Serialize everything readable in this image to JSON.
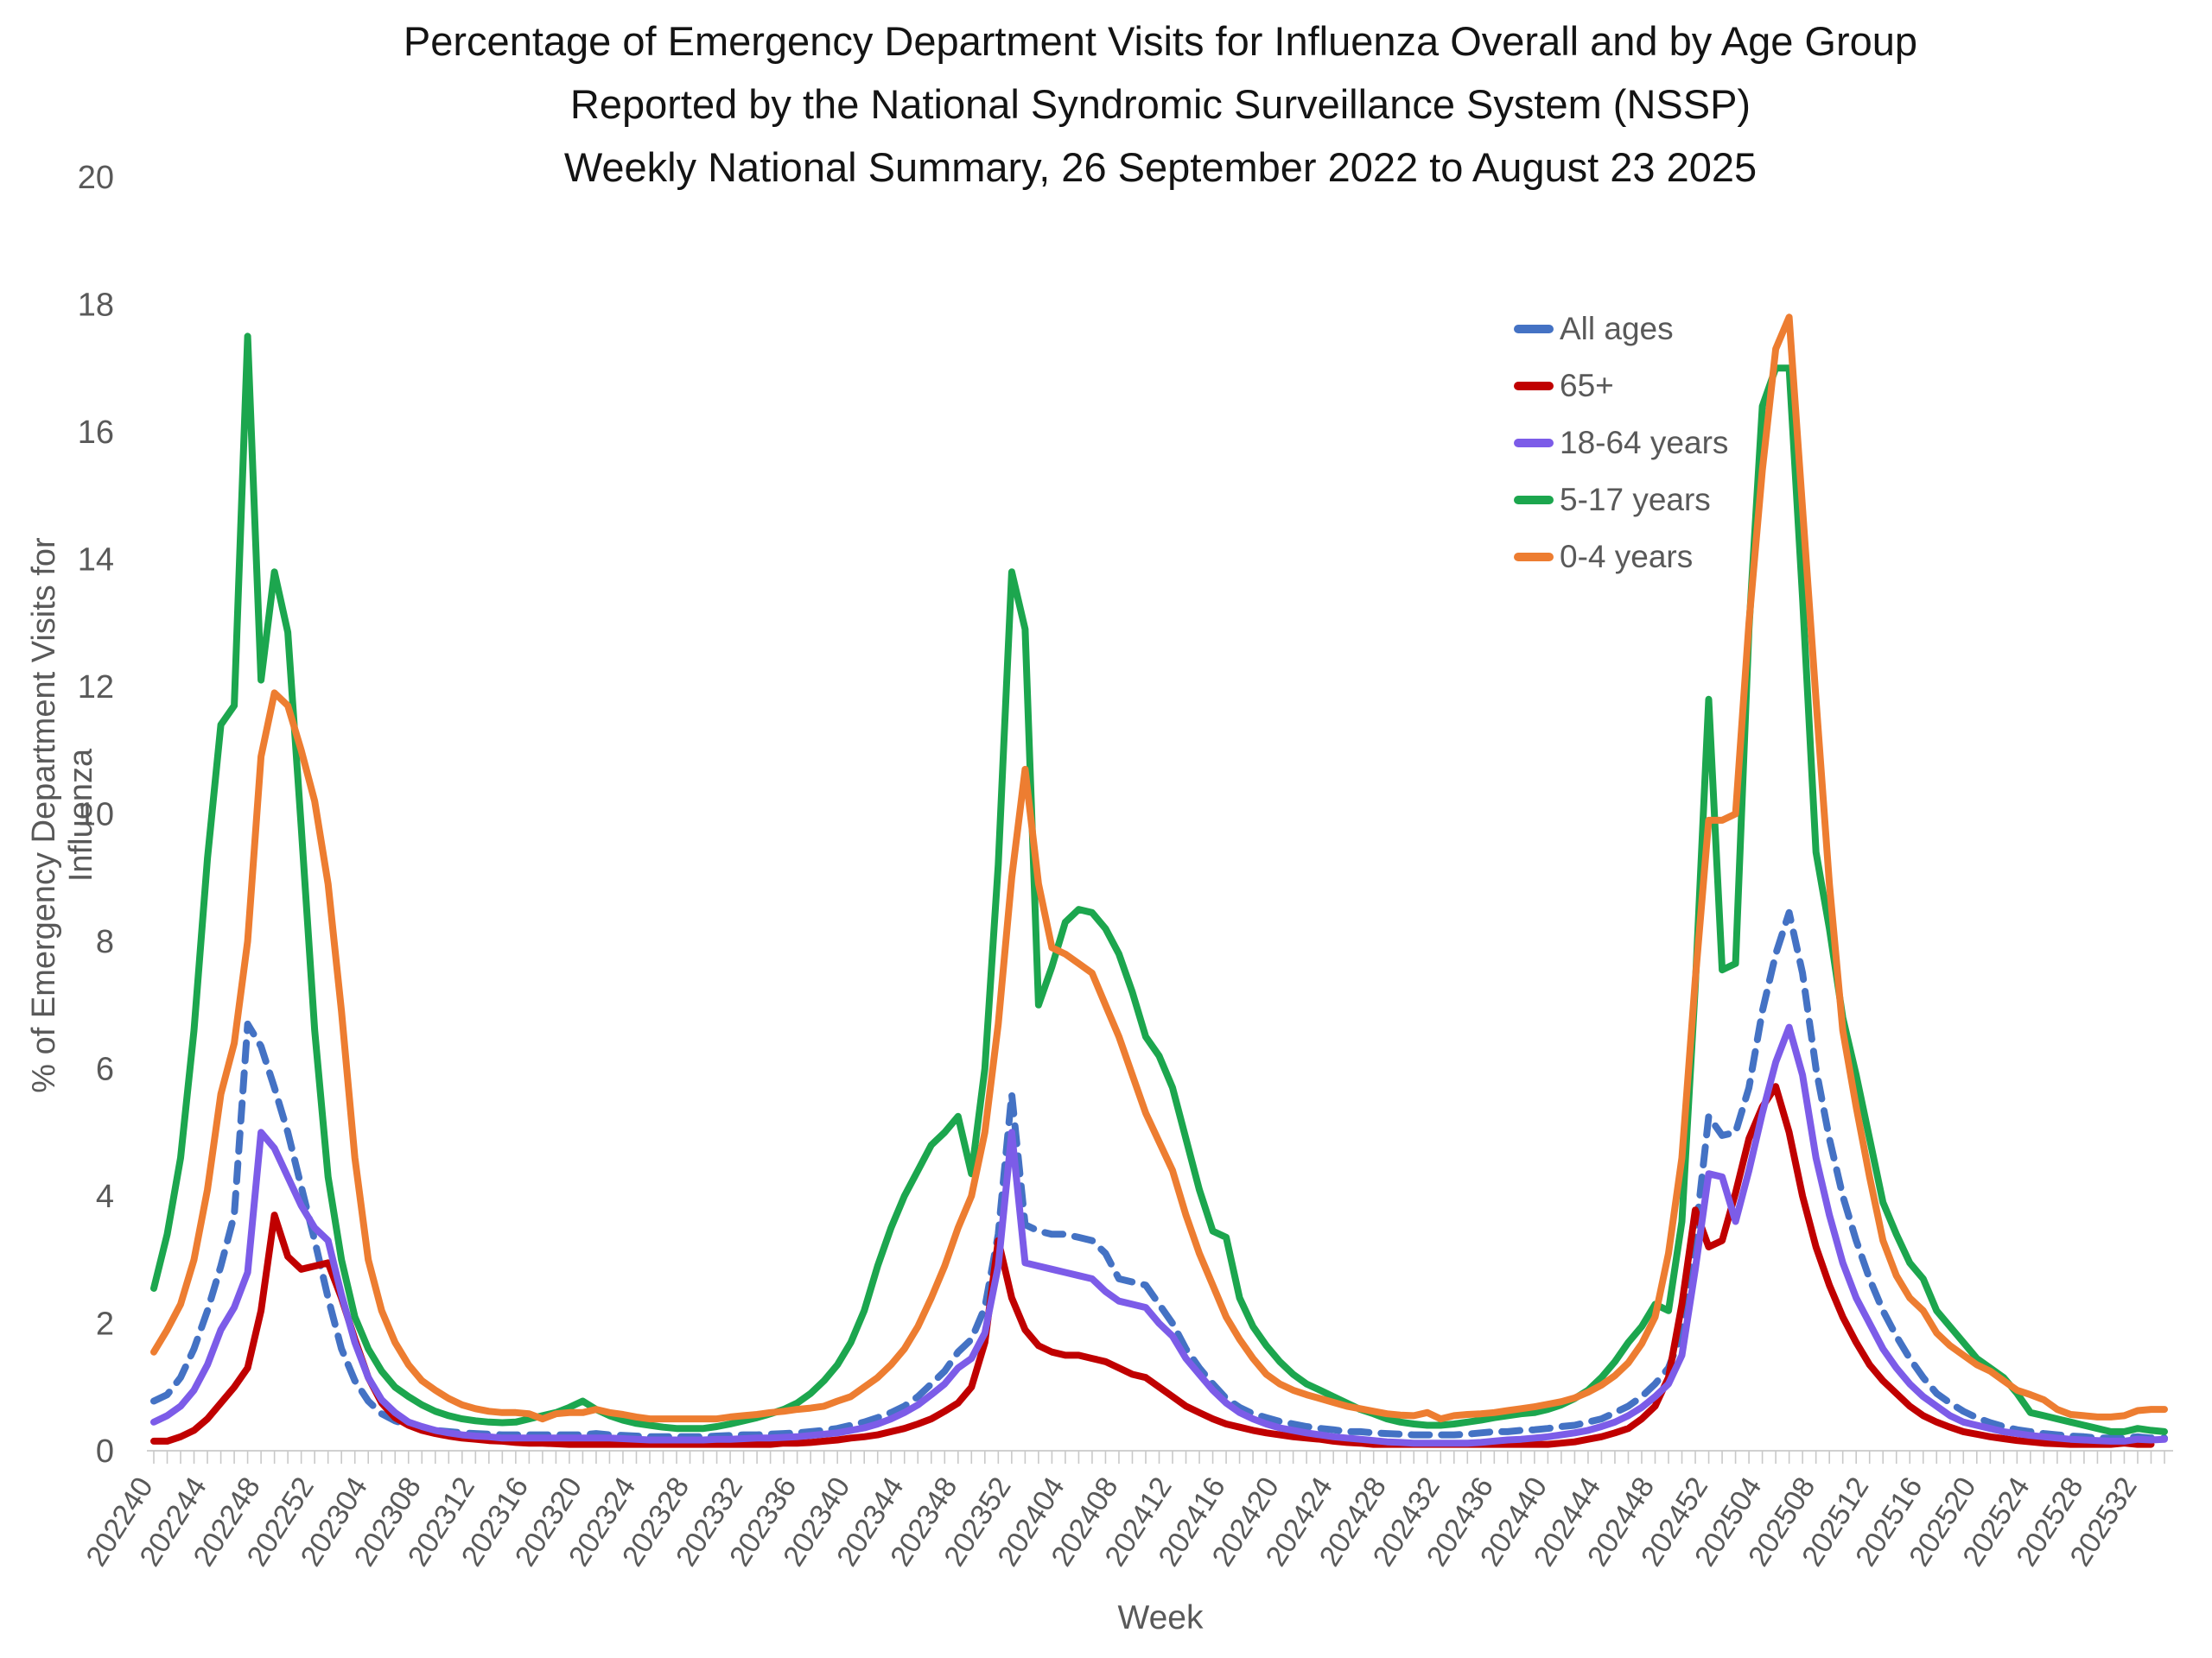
{
  "title": {
    "line1": "Percentage of Emergency Department Visits for Influenza Overall and by Age Group",
    "line2": "Reported by the National Syndromic Surveillance System (NSSP)",
    "line3": "Weekly National Summary, 26 September 2022 to  August 23 2025"
  },
  "y_axis": {
    "title": "% of Emergency Department Visits for Influenza",
    "min": 0,
    "max": 20,
    "tick_step": 2,
    "tick_labels": [
      "0",
      "2",
      "4",
      "6",
      "8",
      "10",
      "12",
      "14",
      "16",
      "18",
      "20"
    ]
  },
  "x_axis": {
    "title": "Week",
    "weeks_per_tick_label": 4,
    "tick_labels": [
      "202240",
      "202244",
      "202248",
      "202252",
      "202304",
      "202308",
      "202312",
      "202316",
      "202320",
      "202324",
      "202328",
      "202332",
      "202336",
      "202340",
      "202344",
      "202348",
      "202352",
      "202404",
      "202408",
      "202412",
      "202416",
      "202420",
      "202424",
      "202428",
      "202432",
      "202436",
      "202440",
      "202444",
      "202448",
      "202452",
      "202504",
      "202508",
      "202512",
      "202516",
      "202520",
      "202524",
      "202528",
      "202532"
    ]
  },
  "colors": {
    "all_ages": "#4472C4",
    "age_65_plus": "#C00000",
    "age_18_64": "#7C5CE8",
    "age_5_17": "#1CA64E",
    "age_0_4": "#ED7D31",
    "axis_text": "#595959",
    "axis_line": "#d0d0d0"
  },
  "chart_data": {
    "type": "line",
    "title": "Percentage of Emergency Department Visits for Influenza Overall and by Age Group, NSSP Weekly National Summary, 26 September 2022 to August 23 2025",
    "xlabel": "Week",
    "ylabel": "% of Emergency Department Visits for Influenza",
    "ylim": [
      0,
      20
    ],
    "grid": false,
    "legend_position": "upper-right",
    "n_points": 151,
    "x_label_every": 4,
    "x_tick_labels": [
      "202240",
      "202244",
      "202248",
      "202252",
      "202304",
      "202308",
      "202312",
      "202316",
      "202320",
      "202324",
      "202328",
      "202332",
      "202336",
      "202340",
      "202344",
      "202348",
      "202352",
      "202404",
      "202408",
      "202412",
      "202416",
      "202420",
      "202424",
      "202428",
      "202432",
      "202436",
      "202440",
      "202444",
      "202448",
      "202452",
      "202504",
      "202508",
      "202512",
      "202516",
      "202520",
      "202524",
      "202528",
      "202532"
    ],
    "series": [
      {
        "name": "All ages",
        "color": "#4472C4",
        "dashed": true,
        "values": [
          0.78,
          0.88,
          1.15,
          1.6,
          2.2,
          2.9,
          3.7,
          6.7,
          6.35,
          5.7,
          5.0,
          4.15,
          3.3,
          2.4,
          1.6,
          1.1,
          0.78,
          0.58,
          0.47,
          0.4,
          0.35,
          0.32,
          0.3,
          0.28,
          0.27,
          0.26,
          0.25,
          0.25,
          0.25,
          0.25,
          0.25,
          0.25,
          0.25,
          0.27,
          0.25,
          0.24,
          0.23,
          0.22,
          0.22,
          0.22,
          0.22,
          0.22,
          0.23,
          0.24,
          0.25,
          0.25,
          0.26,
          0.27,
          0.28,
          0.3,
          0.32,
          0.35,
          0.4,
          0.45,
          0.52,
          0.6,
          0.7,
          0.85,
          1.05,
          1.25,
          1.55,
          1.75,
          2.25,
          3.4,
          5.6,
          3.55,
          3.45,
          3.4,
          3.4,
          3.35,
          3.3,
          3.1,
          2.7,
          2.65,
          2.6,
          2.3,
          2.0,
          1.6,
          1.3,
          1.05,
          0.82,
          0.68,
          0.58,
          0.52,
          0.46,
          0.42,
          0.38,
          0.35,
          0.33,
          0.3,
          0.3,
          0.28,
          0.27,
          0.26,
          0.25,
          0.25,
          0.25,
          0.25,
          0.26,
          0.28,
          0.3,
          0.3,
          0.32,
          0.33,
          0.35,
          0.38,
          0.4,
          0.45,
          0.5,
          0.6,
          0.7,
          0.85,
          1.05,
          1.3,
          1.85,
          3.35,
          5.25,
          4.95,
          5.0,
          5.7,
          6.9,
          7.8,
          8.45,
          7.5,
          6.0,
          4.9,
          4.0,
          3.3,
          2.7,
          2.2,
          1.8,
          1.45,
          1.15,
          0.9,
          0.75,
          0.62,
          0.52,
          0.44,
          0.38,
          0.33,
          0.3,
          0.27,
          0.25,
          0.23,
          0.22,
          0.2,
          0.2,
          0.2,
          0.22,
          0.2,
          0.2
        ]
      },
      {
        "name": "65+",
        "color": "#C00000",
        "dashed": false,
        "values": [
          0.15,
          0.15,
          0.22,
          0.32,
          0.5,
          0.75,
          1.0,
          1.3,
          2.2,
          3.7,
          3.05,
          2.85,
          2.9,
          2.95,
          2.4,
          1.75,
          1.15,
          0.75,
          0.52,
          0.4,
          0.32,
          0.27,
          0.23,
          0.2,
          0.18,
          0.16,
          0.15,
          0.13,
          0.12,
          0.12,
          0.11,
          0.1,
          0.1,
          0.1,
          0.1,
          0.1,
          0.1,
          0.1,
          0.1,
          0.1,
          0.1,
          0.1,
          0.1,
          0.1,
          0.1,
          0.1,
          0.1,
          0.12,
          0.12,
          0.13,
          0.15,
          0.17,
          0.2,
          0.22,
          0.25,
          0.3,
          0.35,
          0.42,
          0.5,
          0.62,
          0.75,
          1.0,
          1.7,
          3.3,
          2.4,
          1.9,
          1.65,
          1.55,
          1.5,
          1.5,
          1.45,
          1.4,
          1.3,
          1.2,
          1.15,
          1.0,
          0.85,
          0.7,
          0.6,
          0.5,
          0.42,
          0.37,
          0.32,
          0.28,
          0.25,
          0.22,
          0.2,
          0.18,
          0.15,
          0.13,
          0.12,
          0.1,
          0.1,
          0.1,
          0.1,
          0.1,
          0.1,
          0.1,
          0.1,
          0.1,
          0.1,
          0.1,
          0.1,
          0.1,
          0.1,
          0.12,
          0.14,
          0.18,
          0.22,
          0.28,
          0.35,
          0.5,
          0.7,
          1.15,
          2.3,
          3.78,
          3.2,
          3.3,
          4.05,
          4.9,
          5.4,
          5.72,
          5.0,
          4.0,
          3.2,
          2.6,
          2.1,
          1.7,
          1.35,
          1.1,
          0.9,
          0.7,
          0.55,
          0.45,
          0.37,
          0.3,
          0.26,
          0.22,
          0.19,
          0.16,
          0.14,
          0.12,
          0.11,
          0.1,
          0.1,
          0.1,
          0.1,
          0.12,
          0.1,
          0.1
        ]
      },
      {
        "name": "18-64 years",
        "color": "#7C5CE8",
        "dashed": false,
        "values": [
          0.45,
          0.55,
          0.7,
          0.95,
          1.35,
          1.9,
          2.25,
          2.8,
          5.0,
          4.75,
          4.3,
          3.85,
          3.5,
          3.3,
          2.45,
          1.7,
          1.15,
          0.8,
          0.6,
          0.45,
          0.38,
          0.32,
          0.28,
          0.25,
          0.23,
          0.22,
          0.2,
          0.2,
          0.2,
          0.2,
          0.2,
          0.2,
          0.2,
          0.2,
          0.2,
          0.19,
          0.18,
          0.17,
          0.17,
          0.17,
          0.17,
          0.17,
          0.18,
          0.18,
          0.19,
          0.2,
          0.2,
          0.21,
          0.22,
          0.24,
          0.26,
          0.28,
          0.32,
          0.36,
          0.42,
          0.5,
          0.6,
          0.72,
          0.88,
          1.05,
          1.3,
          1.45,
          1.85,
          2.9,
          5.0,
          2.95,
          2.9,
          2.85,
          2.8,
          2.75,
          2.7,
          2.5,
          2.35,
          2.3,
          2.25,
          2.0,
          1.8,
          1.45,
          1.2,
          0.95,
          0.75,
          0.6,
          0.5,
          0.42,
          0.36,
          0.32,
          0.28,
          0.25,
          0.22,
          0.2,
          0.18,
          0.16,
          0.14,
          0.13,
          0.12,
          0.12,
          0.12,
          0.12,
          0.12,
          0.13,
          0.15,
          0.17,
          0.18,
          0.2,
          0.22,
          0.25,
          0.28,
          0.32,
          0.38,
          0.45,
          0.55,
          0.68,
          0.85,
          1.05,
          1.5,
          2.85,
          4.35,
          4.3,
          3.6,
          4.4,
          5.3,
          6.1,
          6.65,
          5.9,
          4.6,
          3.7,
          2.95,
          2.4,
          2.0,
          1.6,
          1.3,
          1.05,
          0.85,
          0.7,
          0.55,
          0.45,
          0.4,
          0.35,
          0.3,
          0.27,
          0.24,
          0.22,
          0.2,
          0.18,
          0.17,
          0.16,
          0.15,
          0.15,
          0.18,
          0.17,
          0.18
        ]
      },
      {
        "name": "5-17 years",
        "color": "#1CA64E",
        "dashed": false,
        "values": [
          2.55,
          3.4,
          4.6,
          6.6,
          9.3,
          11.4,
          11.7,
          17.5,
          12.1,
          13.8,
          12.85,
          9.8,
          6.6,
          4.3,
          3.0,
          2.1,
          1.6,
          1.25,
          1.0,
          0.85,
          0.72,
          0.62,
          0.55,
          0.5,
          0.47,
          0.45,
          0.44,
          0.45,
          0.5,
          0.55,
          0.6,
          0.68,
          0.78,
          0.65,
          0.55,
          0.48,
          0.43,
          0.4,
          0.37,
          0.35,
          0.35,
          0.35,
          0.38,
          0.42,
          0.47,
          0.52,
          0.58,
          0.65,
          0.75,
          0.9,
          1.1,
          1.35,
          1.7,
          2.2,
          2.9,
          3.5,
          4.0,
          4.4,
          4.8,
          5.0,
          5.25,
          4.35,
          6.0,
          9.2,
          13.8,
          12.9,
          7.0,
          7.6,
          8.3,
          8.5,
          8.45,
          8.2,
          7.8,
          7.2,
          6.5,
          6.2,
          5.7,
          4.9,
          4.1,
          3.45,
          3.35,
          2.4,
          1.95,
          1.65,
          1.4,
          1.2,
          1.05,
          0.95,
          0.85,
          0.75,
          0.65,
          0.58,
          0.5,
          0.45,
          0.42,
          0.4,
          0.4,
          0.42,
          0.45,
          0.48,
          0.52,
          0.55,
          0.58,
          0.6,
          0.65,
          0.72,
          0.82,
          0.95,
          1.15,
          1.4,
          1.7,
          1.95,
          2.3,
          2.2,
          3.6,
          7.3,
          11.8,
          7.55,
          7.65,
          12.9,
          16.4,
          17.0,
          17.0,
          13.4,
          9.4,
          8.2,
          6.8,
          5.9,
          4.9,
          3.9,
          3.4,
          2.95,
          2.7,
          2.2,
          1.95,
          1.7,
          1.45,
          1.3,
          1.15,
          0.9,
          0.6,
          0.55,
          0.5,
          0.45,
          0.4,
          0.35,
          0.3,
          0.3,
          0.35,
          0.32,
          0.3
        ]
      },
      {
        "name": "0-4 years",
        "color": "#ED7D31",
        "dashed": false,
        "values": [
          1.55,
          1.9,
          2.3,
          3.0,
          4.1,
          5.6,
          6.4,
          8.0,
          10.9,
          11.9,
          11.7,
          11.0,
          10.2,
          8.9,
          6.9,
          4.6,
          3.0,
          2.2,
          1.7,
          1.35,
          1.1,
          0.95,
          0.82,
          0.72,
          0.66,
          0.62,
          0.6,
          0.6,
          0.58,
          0.5,
          0.58,
          0.6,
          0.6,
          0.65,
          0.6,
          0.57,
          0.53,
          0.5,
          0.5,
          0.5,
          0.5,
          0.5,
          0.5,
          0.53,
          0.55,
          0.57,
          0.6,
          0.62,
          0.65,
          0.67,
          0.7,
          0.78,
          0.85,
          1.0,
          1.15,
          1.35,
          1.6,
          1.95,
          2.4,
          2.9,
          3.5,
          4.0,
          5.0,
          6.7,
          9.0,
          10.7,
          8.9,
          7.9,
          7.8,
          7.65,
          7.5,
          7.0,
          6.5,
          5.9,
          5.3,
          4.85,
          4.4,
          3.7,
          3.1,
          2.6,
          2.1,
          1.75,
          1.45,
          1.2,
          1.05,
          0.95,
          0.88,
          0.82,
          0.76,
          0.7,
          0.66,
          0.62,
          0.58,
          0.56,
          0.55,
          0.6,
          0.5,
          0.55,
          0.57,
          0.58,
          0.6,
          0.63,
          0.66,
          0.69,
          0.73,
          0.77,
          0.83,
          0.92,
          1.03,
          1.18,
          1.38,
          1.68,
          2.1,
          3.1,
          4.6,
          7.4,
          9.9,
          9.9,
          10.0,
          13.0,
          15.4,
          17.3,
          17.8,
          14.8,
          11.8,
          8.9,
          6.6,
          5.4,
          4.3,
          3.3,
          2.75,
          2.4,
          2.2,
          1.85,
          1.65,
          1.5,
          1.35,
          1.25,
          1.1,
          0.95,
          0.88,
          0.8,
          0.65,
          0.57,
          0.55,
          0.53,
          0.53,
          0.55,
          0.63,
          0.65,
          0.65
        ]
      }
    ]
  }
}
